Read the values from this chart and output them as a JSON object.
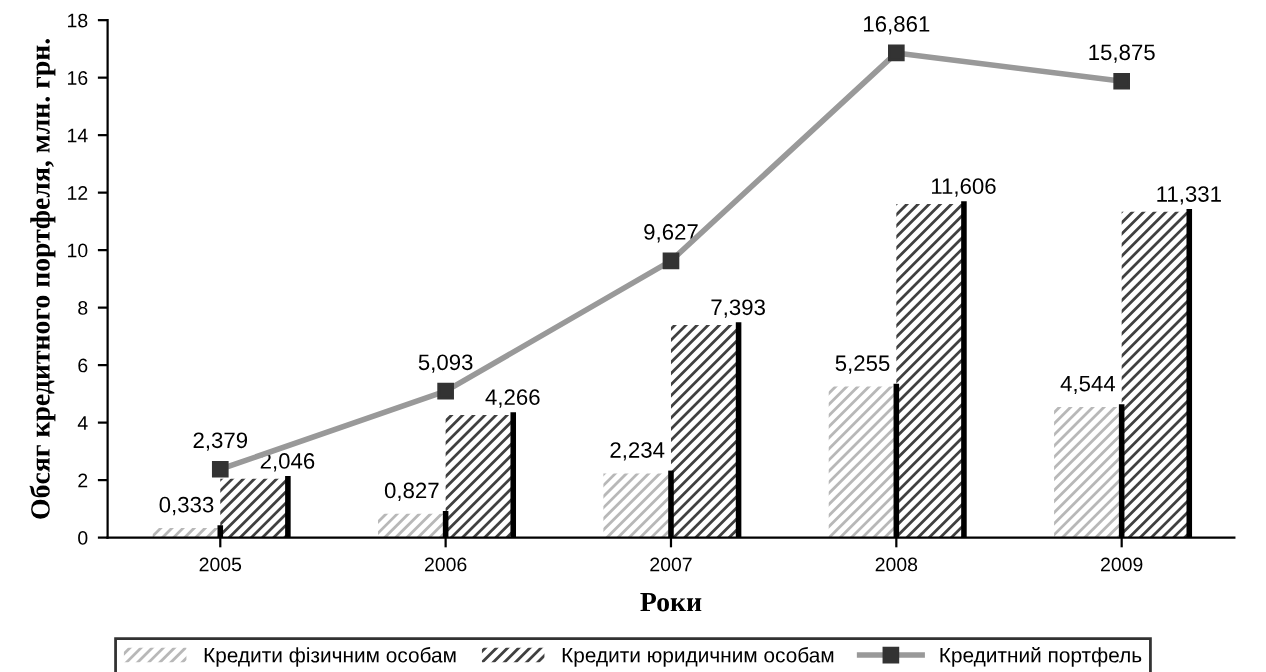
{
  "chart_data": {
    "type": "bar",
    "xlabel": "Роки",
    "ylabel": "Обсяг кредитного портфеля, млн. грн.",
    "categories": [
      "2005",
      "2006",
      "2007",
      "2008",
      "2009"
    ],
    "series": [
      {
        "name": "Кредити фізичним особам",
        "color": "#b8b8b8",
        "values": [
          0.333,
          0.827,
          2.234,
          5.255,
          4.544
        ],
        "value_labels": [
          "0,333",
          "0,827",
          "2,234",
          "5,255",
          "4,544"
        ]
      },
      {
        "name": "Кредити юридичним особам",
        "color": "#404040",
        "values": [
          2.046,
          4.266,
          7.393,
          11.606,
          11.331
        ],
        "value_labels": [
          "2,046",
          "4,266",
          "7,393",
          "11,606",
          "11,331"
        ]
      },
      {
        "name": "Кредитний портфель",
        "type": "line",
        "color": "#999999",
        "marker": "square",
        "values": [
          2.379,
          5.093,
          9.627,
          16.861,
          15.875
        ],
        "value_labels": [
          "2,379",
          "5,093",
          "9,627",
          "16,861",
          "15,875"
        ]
      }
    ],
    "ylim": [
      0,
      18
    ],
    "yticks": [
      0,
      2,
      4,
      6,
      8,
      10,
      12,
      14,
      16,
      18
    ],
    "grid": false,
    "legend": "bottom"
  }
}
